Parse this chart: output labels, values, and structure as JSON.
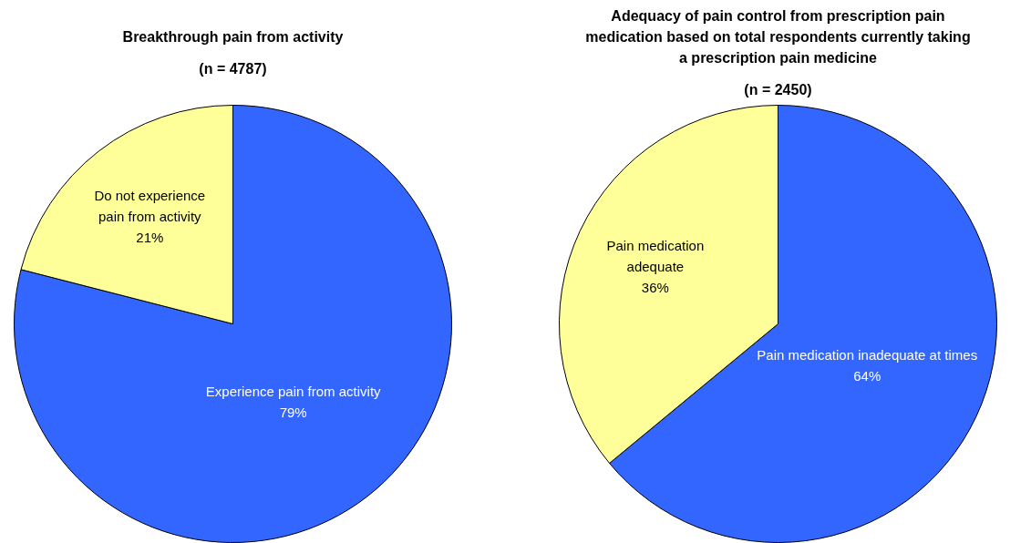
{
  "chart_data": [
    {
      "type": "pie",
      "title": "Breakthrough pain from activity",
      "subtitle": "(n = 4787)",
      "categories": [
        "Experience pain from activity",
        "Do not experience pain from activity"
      ],
      "values": [
        79,
        21
      ],
      "colors": [
        "#3366ff",
        "#ffff99"
      ],
      "value_labels": [
        "79%",
        "21%"
      ]
    },
    {
      "type": "pie",
      "title": "Adequacy of pain control from prescription pain medication based on total respondents currently taking a prescription pain medicine",
      "subtitle": "(n = 2450)",
      "categories": [
        "Pain medication inadequate at times",
        "Pain medication adequate"
      ],
      "values": [
        64,
        36
      ],
      "colors": [
        "#3366ff",
        "#ffff99"
      ],
      "value_labels": [
        "64%",
        "36%"
      ]
    }
  ]
}
